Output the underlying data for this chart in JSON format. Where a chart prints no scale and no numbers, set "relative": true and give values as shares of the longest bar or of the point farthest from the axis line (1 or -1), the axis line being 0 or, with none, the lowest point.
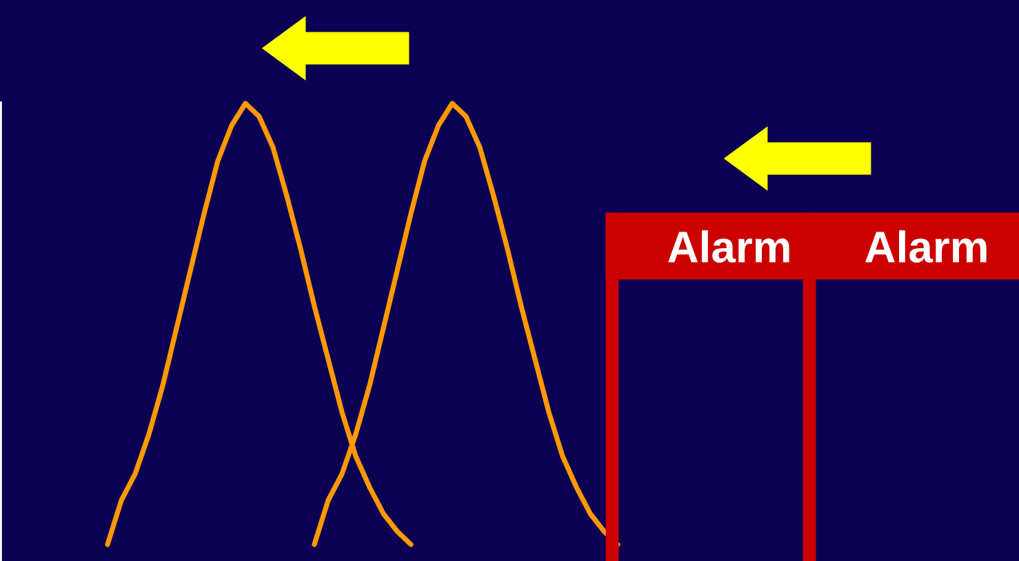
{
  "chart_data": {
    "type": "line",
    "relative": true,
    "legend": false,
    "grid": false,
    "marker": "none",
    "line_style": "solid",
    "categories": [
      null,
      null,
      null,
      null,
      null,
      null,
      null,
      null,
      null,
      null,
      null,
      null,
      null,
      null,
      null,
      null,
      null,
      null,
      null,
      null,
      null,
      null,
      null,
      null,
      null,
      null,
      null,
      null,
      null,
      null,
      null,
      null,
      null,
      null,
      null,
      null,
      null,
      null,
      null,
      null,
      null,
      null,
      null,
      null,
      null,
      null,
      null,
      null,
      null,
      null,
      null,
      null,
      null,
      null,
      null,
      null,
      null,
      null,
      null,
      null,
      null,
      null,
      null,
      null,
      null,
      null,
      null,
      null,
      null,
      null,
      null,
      null,
      null,
      null
    ],
    "series": [
      {
        "color": "#ff9900",
        "values": [
          null,
          null,
          null,
          null,
          null,
          null,
          null,
          0,
          0.1,
          0.16,
          0.25,
          0.36,
          0.49,
          0.62,
          0.75,
          0.87,
          0.95,
          1.0,
          0.97,
          0.9,
          0.79,
          0.67,
          0.54,
          0.42,
          0.3,
          0.2,
          0.13,
          0.07,
          0.03,
          0.0,
          null,
          null,
          null,
          null,
          null,
          null,
          null,
          null,
          null,
          null,
          null,
          null,
          null,
          null,
          null,
          null,
          null,
          null,
          null,
          null,
          null,
          null,
          null,
          null,
          null,
          null,
          null,
          null,
          null,
          null,
          null,
          null,
          null,
          null,
          null,
          null,
          null,
          null,
          null,
          null,
          null,
          null,
          null,
          null
        ]
      },
      {
        "color": "#ff9900",
        "values": [
          null,
          null,
          null,
          null,
          null,
          null,
          null,
          null,
          null,
          null,
          null,
          null,
          null,
          null,
          null,
          null,
          null,
          null,
          null,
          null,
          null,
          null,
          0,
          0.1,
          0.16,
          0.25,
          0.36,
          0.49,
          0.62,
          0.75,
          0.87,
          0.95,
          1.0,
          0.97,
          0.9,
          0.79,
          0.67,
          0.54,
          0.42,
          0.3,
          0.2,
          0.13,
          0.07,
          0.03,
          0.0,
          null,
          null,
          null,
          null,
          null,
          null,
          null,
          null,
          null,
          null,
          null,
          null,
          null,
          null,
          null,
          null,
          null,
          null,
          null,
          null,
          null,
          null,
          null,
          null,
          null,
          null,
          null,
          null,
          null
        ]
      }
    ],
    "annotations": [
      "Alarm",
      "Alarm"
    ]
  }
}
